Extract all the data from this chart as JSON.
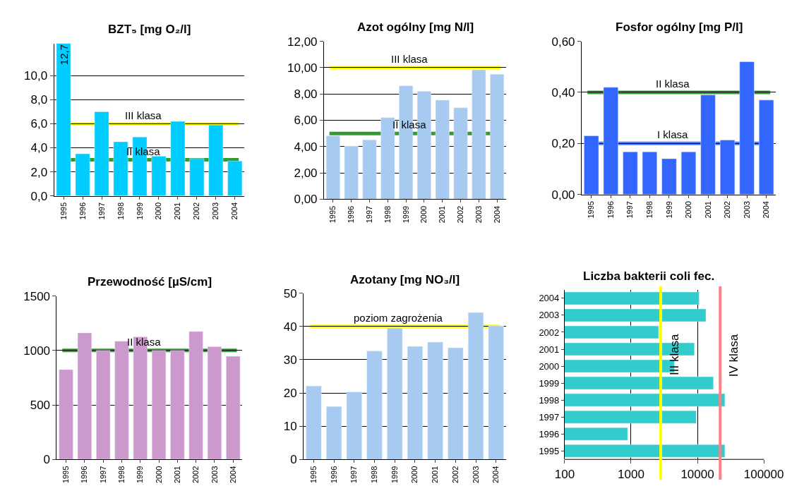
{
  "chart_data": [
    {
      "type": "bar",
      "title": "BZT₅ [mg O₂/l]",
      "categories": [
        "1995",
        "1996",
        "1997",
        "1998",
        "1999",
        "2000",
        "2001",
        "2002",
        "2003",
        "2004"
      ],
      "values": [
        12.7,
        3.5,
        7.0,
        4.5,
        4.9,
        3.3,
        6.2,
        3.1,
        5.9,
        2.9
      ],
      "value_labels": [
        "12,7",
        null,
        null,
        null,
        null,
        null,
        null,
        null,
        null,
        null
      ],
      "color": "#00ccff",
      "ylim": [
        0,
        12.7
      ],
      "yticks": [
        {
          "value": 0,
          "label": "0,0"
        },
        {
          "value": 2,
          "label": "2,0"
        },
        {
          "value": 4,
          "label": "4,0"
        },
        {
          "value": 6,
          "label": "6,0"
        },
        {
          "value": 8,
          "label": "8,0"
        },
        {
          "value": 10,
          "label": "10,0"
        }
      ],
      "grid": "y",
      "ref_lines": [
        {
          "axis": "y",
          "value": 6,
          "label": "III klasa",
          "color": "#ffff00"
        },
        {
          "axis": "y",
          "value": 3,
          "label": "II klasa",
          "color": "#339933"
        }
      ]
    },
    {
      "type": "bar",
      "title": "Azot ogólny [mg N/l]",
      "categories": [
        "1995",
        "1996",
        "1997",
        "1998",
        "1999",
        "2000",
        "2001",
        "2002",
        "2003",
        "2004"
      ],
      "values": [
        4.82,
        4.04,
        4.51,
        6.2,
        8.62,
        8.2,
        7.53,
        6.95,
        9.83,
        9.5
      ],
      "color": "#a6caf0",
      "ylim": [
        0,
        12
      ],
      "yticks": [
        {
          "value": 0,
          "label": "0,00"
        },
        {
          "value": 2,
          "label": "2,00"
        },
        {
          "value": 4,
          "label": "4,00"
        },
        {
          "value": 6,
          "label": "6,00"
        },
        {
          "value": 8,
          "label": "8,00"
        },
        {
          "value": 10,
          "label": "10,00"
        },
        {
          "value": 12,
          "label": "12,00"
        }
      ],
      "grid": "y",
      "ref_lines": [
        {
          "axis": "y",
          "value": 10,
          "label": "III klasa",
          "color": "#ffff00"
        },
        {
          "axis": "y",
          "value": 5,
          "label": "II klasa",
          "color": "#339933"
        }
      ]
    },
    {
      "type": "bar",
      "title": "Fosfor ogólny [mg P/l]",
      "categories": [
        "1995",
        "1996",
        "1997",
        "1998",
        "1999",
        "2000",
        "2001",
        "2002",
        "2003",
        "2004"
      ],
      "values": [
        0.23,
        0.42,
        0.167,
        0.167,
        0.14,
        0.167,
        0.39,
        0.213,
        0.52,
        0.37
      ],
      "color": "#3366ff",
      "ylim": [
        0,
        0.6
      ],
      "yticks": [
        {
          "value": 0,
          "label": "0,00"
        },
        {
          "value": 0.2,
          "label": "0,20"
        },
        {
          "value": 0.4,
          "label": "0,40"
        },
        {
          "value": 0.6,
          "label": "0,60"
        }
      ],
      "grid": "y",
      "ref_lines": [
        {
          "axis": "y",
          "value": 0.4,
          "label": "II klasa",
          "color": "#339933"
        },
        {
          "axis": "y",
          "value": 0.2,
          "label": "I klasa",
          "color": "#4a7dff"
        }
      ]
    },
    {
      "type": "bar",
      "title": "Przewodność [µS/cm]",
      "categories": [
        "1995",
        "1996",
        "1997",
        "1998",
        "1999",
        "2000",
        "2001",
        "2002",
        "2003",
        "2004"
      ],
      "values": [
        824,
        1161,
        1000,
        1085,
        1125,
        1000,
        1000,
        1174,
        1035,
        947
      ],
      "color": "#cc99cc",
      "ylim": [
        0,
        1500
      ],
      "yticks": [
        0,
        500,
        1000,
        1500
      ],
      "grid": "y",
      "ref_lines": [
        {
          "axis": "y",
          "value": 1000,
          "label": "II klasa",
          "color": "#339933"
        }
      ]
    },
    {
      "type": "bar",
      "title": "Azotany [mg NO₃/l]",
      "categories": [
        "1995",
        "1996",
        "1997",
        "1998",
        "1999",
        "2000",
        "2001",
        "2002",
        "2003",
        "2004"
      ],
      "values": [
        22.1,
        15.9,
        20.3,
        32.6,
        39.5,
        34.0,
        35.3,
        33.6,
        44.2,
        40.2
      ],
      "color": "#a6caf0",
      "ylim": [
        0,
        50
      ],
      "yticks": [
        0,
        10,
        20,
        30,
        40,
        50
      ],
      "grid": "y",
      "ref_lines": [
        {
          "axis": "y",
          "value": 40,
          "label": "poziom zagrożenia",
          "color": "#ffff00"
        }
      ]
    },
    {
      "type": "bar",
      "orientation": "horizontal",
      "log": "x",
      "title": "Liczba bakterii coli fec.",
      "categories": [
        "2004",
        "2003",
        "2002",
        "2001",
        "2000",
        "1999",
        "1998",
        "1997",
        "1996",
        "1995"
      ],
      "values": [
        10600,
        13400,
        2600,
        9000,
        4500,
        17400,
        25900,
        9600,
        890,
        25900
      ],
      "color": "#33cccc",
      "xlim": [
        100,
        100000
      ],
      "xticks": [
        100,
        1000,
        10000,
        100000
      ],
      "grid": "x",
      "ref_lines": [
        {
          "axis": "x",
          "value": 2800,
          "label": "III klasa",
          "color": "#ffff00"
        },
        {
          "axis": "x",
          "value": 22000,
          "label": "IV klasa",
          "color": "#ff8080"
        }
      ]
    }
  ]
}
